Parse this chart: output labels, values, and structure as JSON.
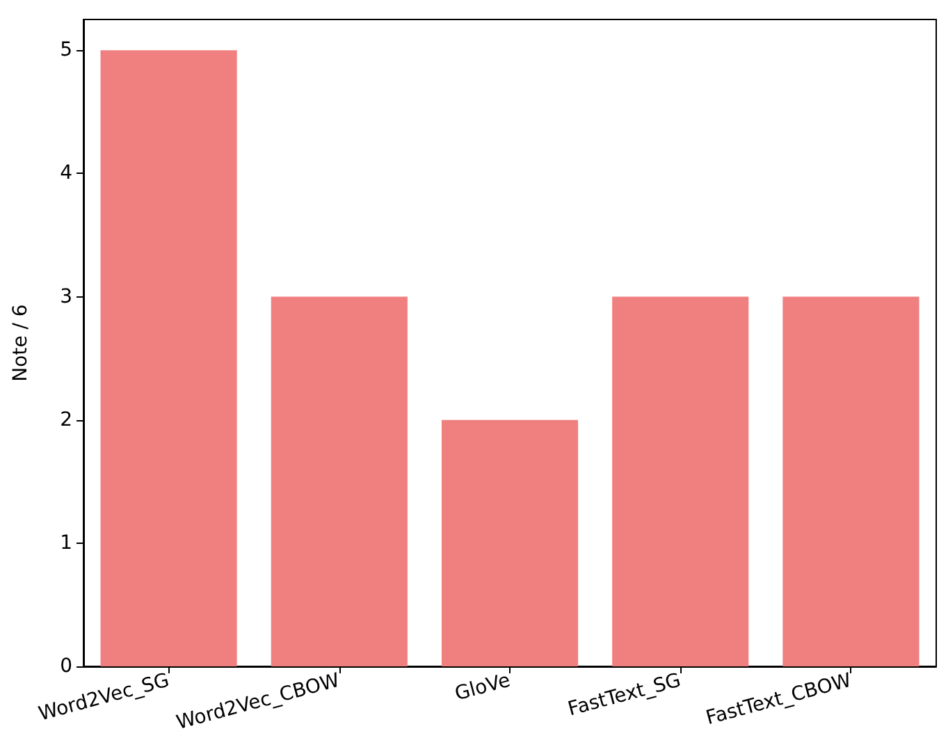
{
  "chart_data": {
    "type": "bar",
    "ylabel": "Note / 6",
    "categories": [
      "Word2Vec_SG",
      "Word2Vec_CBOW",
      "GloVe",
      "FastText_SG",
      "FastText_CBOW"
    ],
    "values": [
      5,
      3,
      2,
      3,
      3
    ],
    "color": "#f08080",
    "ylim": [
      0,
      5.25
    ],
    "yticks": [
      0,
      1,
      2,
      3,
      4,
      5
    ],
    "grid": false
  }
}
